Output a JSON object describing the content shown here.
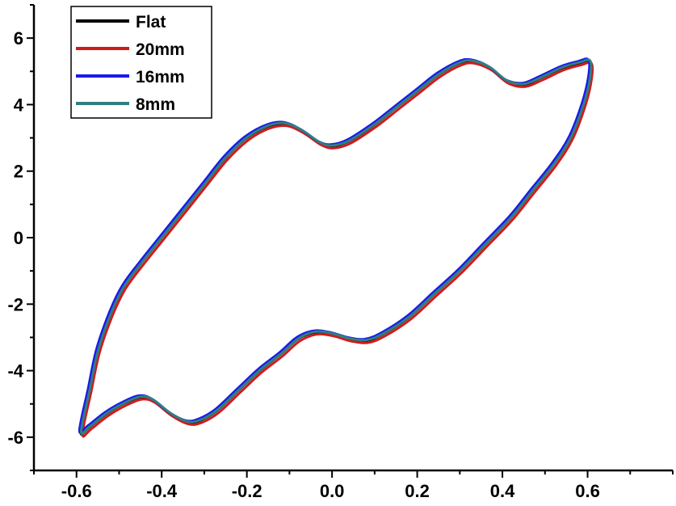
{
  "chart_data": {
    "type": "line",
    "title": "",
    "xlabel": "",
    "ylabel": "",
    "xlim": [
      -0.7,
      0.8
    ],
    "ylim": [
      -7,
      7
    ],
    "x_ticks": [
      -0.6,
      -0.4,
      -0.2,
      0.0,
      0.2,
      0.4,
      0.6
    ],
    "x_tick_labels": [
      "-0.6",
      "-0.4",
      "-0.2",
      "0.0",
      "0.2",
      "0.4",
      "0.6"
    ],
    "y_ticks": [
      -6,
      -4,
      -2,
      0,
      2,
      4,
      6
    ],
    "y_tick_labels": [
      "-6",
      "-4",
      "-2",
      "0",
      "2",
      "4",
      "6"
    ],
    "grid": false,
    "legend_position": "top-left",
    "series": [
      {
        "name": "Flat",
        "color": "#000000",
        "x_shift": 0.0,
        "y_shift": 0.0
      },
      {
        "name": "20mm",
        "color": "#d11a1a",
        "x_shift": 0.004,
        "y_shift": -0.06
      },
      {
        "name": "16mm",
        "color": "#1a1aee",
        "x_shift": -0.003,
        "y_shift": 0.05
      },
      {
        "name": "8mm",
        "color": "#2f7f82",
        "x_shift": 0.001,
        "y_shift": 0.02
      }
    ],
    "loop_points": [
      [
        -0.59,
        -5.85
      ],
      [
        -0.57,
        -4.6
      ],
      [
        -0.55,
        -3.4
      ],
      [
        -0.52,
        -2.3
      ],
      [
        -0.49,
        -1.5
      ],
      [
        -0.45,
        -0.8
      ],
      [
        -0.4,
        0.0
      ],
      [
        -0.35,
        0.8
      ],
      [
        -0.3,
        1.6
      ],
      [
        -0.25,
        2.4
      ],
      [
        -0.2,
        3.0
      ],
      [
        -0.15,
        3.35
      ],
      [
        -0.11,
        3.42
      ],
      [
        -0.07,
        3.2
      ],
      [
        -0.03,
        2.85
      ],
      [
        0.0,
        2.75
      ],
      [
        0.04,
        2.9
      ],
      [
        0.1,
        3.4
      ],
      [
        0.15,
        3.9
      ],
      [
        0.2,
        4.4
      ],
      [
        0.25,
        4.9
      ],
      [
        0.3,
        5.25
      ],
      [
        0.33,
        5.3
      ],
      [
        0.37,
        5.1
      ],
      [
        0.41,
        4.7
      ],
      [
        0.45,
        4.6
      ],
      [
        0.49,
        4.8
      ],
      [
        0.54,
        5.1
      ],
      [
        0.58,
        5.25
      ],
      [
        0.605,
        5.3
      ],
      [
        0.605,
        4.8
      ],
      [
        0.59,
        4.0
      ],
      [
        0.56,
        3.0
      ],
      [
        0.52,
        2.2
      ],
      [
        0.47,
        1.4
      ],
      [
        0.42,
        0.6
      ],
      [
        0.36,
        -0.2
      ],
      [
        0.3,
        -1.0
      ],
      [
        0.24,
        -1.7
      ],
      [
        0.18,
        -2.4
      ],
      [
        0.12,
        -2.9
      ],
      [
        0.08,
        -3.1
      ],
      [
        0.04,
        -3.05
      ],
      [
        0.0,
        -2.9
      ],
      [
        -0.04,
        -2.85
      ],
      [
        -0.08,
        -3.05
      ],
      [
        -0.12,
        -3.5
      ],
      [
        -0.17,
        -4.0
      ],
      [
        -0.22,
        -4.6
      ],
      [
        -0.27,
        -5.2
      ],
      [
        -0.31,
        -5.5
      ],
      [
        -0.34,
        -5.55
      ],
      [
        -0.38,
        -5.3
      ],
      [
        -0.42,
        -4.9
      ],
      [
        -0.45,
        -4.8
      ],
      [
        -0.49,
        -5.0
      ],
      [
        -0.53,
        -5.3
      ],
      [
        -0.57,
        -5.7
      ],
      [
        -0.59,
        -5.85
      ]
    ]
  }
}
